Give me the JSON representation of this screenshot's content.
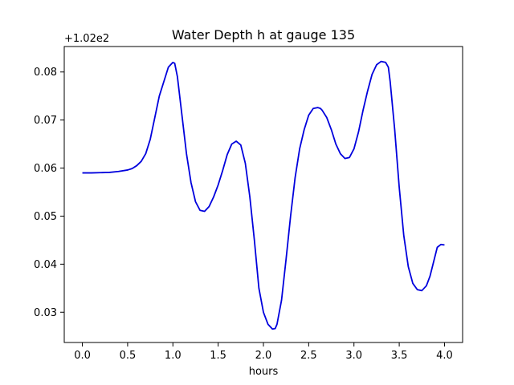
{
  "chart_data": {
    "type": "line",
    "title": "Water Depth h at gauge 135",
    "xlabel": "hours",
    "ylabel": "",
    "offset_label": "+1.02e2",
    "xlim": [
      -0.2,
      4.2
    ],
    "ylim": [
      0.0237,
      0.0853
    ],
    "xticks": [
      0.0,
      0.5,
      1.0,
      1.5,
      2.0,
      2.5,
      3.0,
      3.5,
      4.0
    ],
    "xtick_labels": [
      "0.0",
      "0.5",
      "1.0",
      "1.5",
      "2.0",
      "2.5",
      "3.0",
      "3.5",
      "4.0"
    ],
    "yticks": [
      0.03,
      0.04,
      0.05,
      0.06,
      0.07,
      0.08
    ],
    "ytick_labels": [
      "0.03",
      "0.04",
      "0.05",
      "0.06",
      "0.07",
      "0.08"
    ],
    "grid": false,
    "series": [
      {
        "name": "",
        "color": "#0000dd",
        "x": [
          0.0,
          0.1,
          0.2,
          0.3,
          0.4,
          0.5,
          0.55,
          0.6,
          0.65,
          0.7,
          0.75,
          0.8,
          0.85,
          0.9,
          0.95,
          1.0,
          1.02,
          1.05,
          1.1,
          1.15,
          1.2,
          1.25,
          1.3,
          1.35,
          1.4,
          1.45,
          1.5,
          1.55,
          1.6,
          1.65,
          1.7,
          1.75,
          1.8,
          1.85,
          1.9,
          1.95,
          2.0,
          2.05,
          2.1,
          2.13,
          2.15,
          2.2,
          2.25,
          2.3,
          2.35,
          2.4,
          2.45,
          2.5,
          2.55,
          2.6,
          2.63,
          2.65,
          2.7,
          2.75,
          2.8,
          2.85,
          2.9,
          2.95,
          3.0,
          3.05,
          3.1,
          3.15,
          3.2,
          3.25,
          3.3,
          3.35,
          3.38,
          3.4,
          3.45,
          3.5,
          3.55,
          3.6,
          3.65,
          3.7,
          3.75,
          3.8,
          3.84,
          3.88,
          3.92,
          3.96,
          4.0
        ],
        "y": [
          0.059,
          0.059,
          0.05905,
          0.0591,
          0.0593,
          0.0596,
          0.0599,
          0.0605,
          0.0614,
          0.063,
          0.066,
          0.0705,
          0.075,
          0.078,
          0.081,
          0.082,
          0.0818,
          0.079,
          0.071,
          0.063,
          0.057,
          0.053,
          0.0512,
          0.051,
          0.052,
          0.054,
          0.0565,
          0.0595,
          0.0628,
          0.065,
          0.0656,
          0.0648,
          0.061,
          0.054,
          0.045,
          0.035,
          0.03,
          0.0275,
          0.0265,
          0.0266,
          0.0275,
          0.0325,
          0.041,
          0.05,
          0.058,
          0.064,
          0.068,
          0.071,
          0.0724,
          0.0726,
          0.0724,
          0.072,
          0.0705,
          0.068,
          0.065,
          0.063,
          0.062,
          0.0622,
          0.064,
          0.0675,
          0.072,
          0.076,
          0.0795,
          0.0815,
          0.0822,
          0.082,
          0.081,
          0.078,
          0.068,
          0.056,
          0.046,
          0.0395,
          0.036,
          0.0347,
          0.0345,
          0.0355,
          0.0375,
          0.0405,
          0.0435,
          0.0441,
          0.044
        ]
      }
    ]
  }
}
